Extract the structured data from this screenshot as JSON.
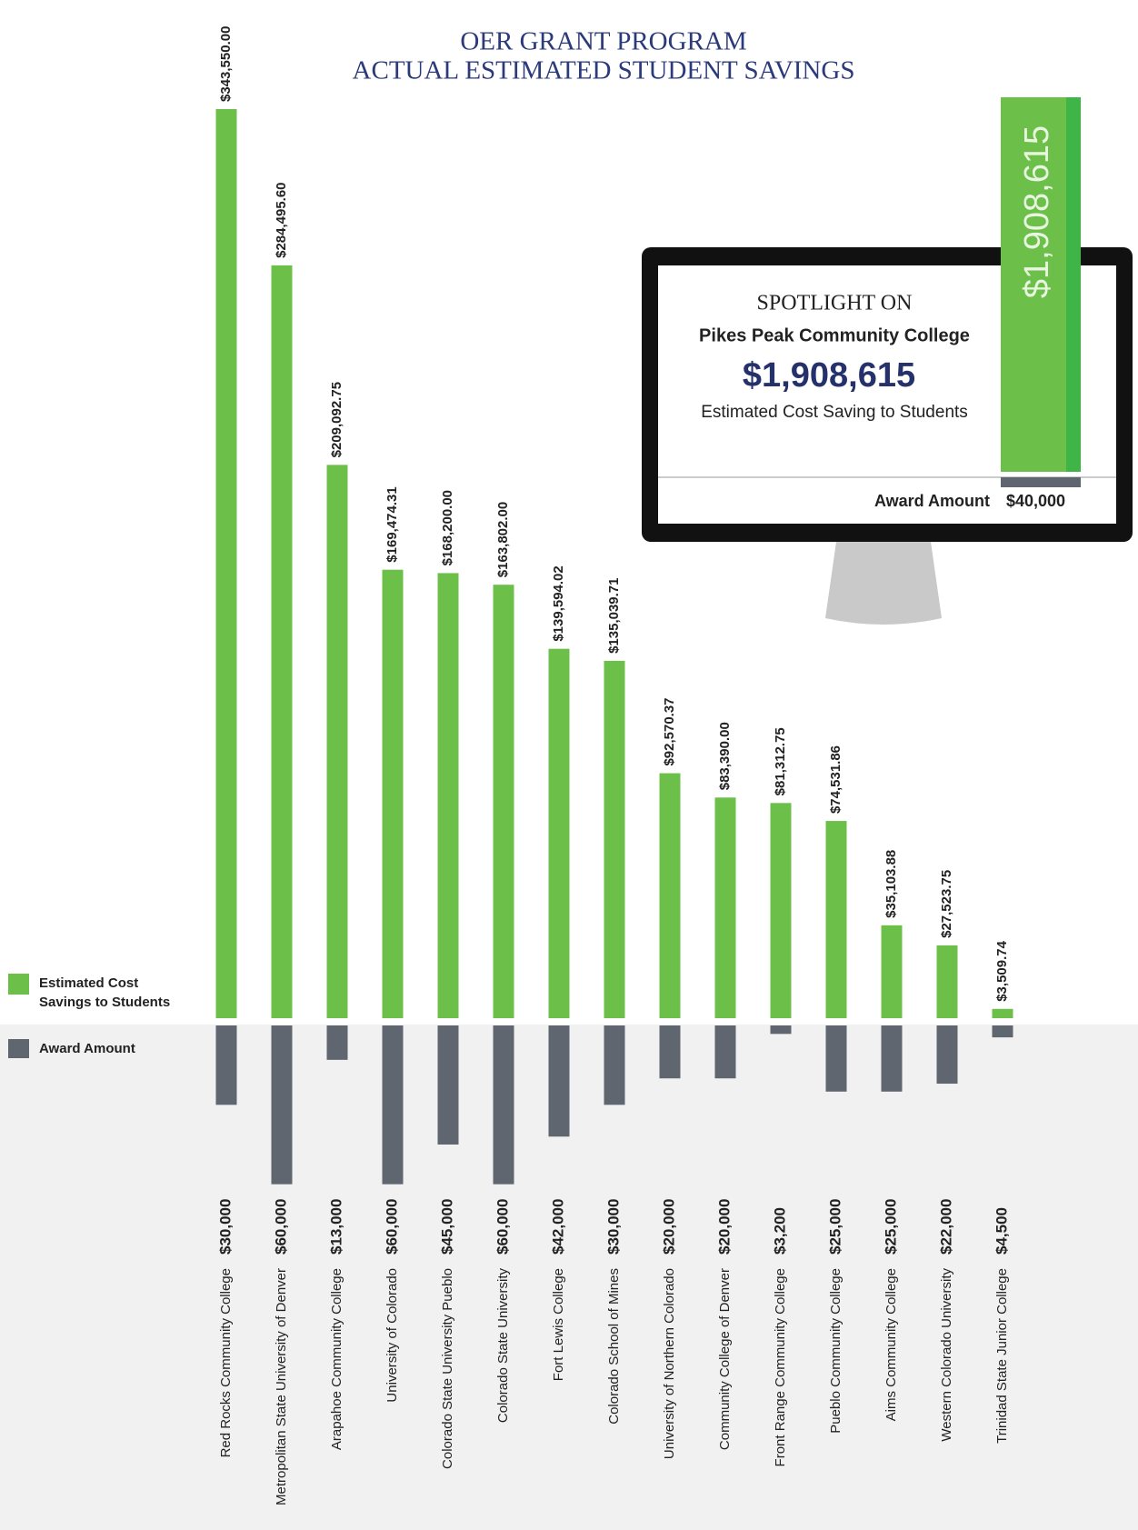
{
  "chart_data": {
    "type": "diverging-bar",
    "title": "OER GRANT PROGRAM",
    "subtitle": "ACTUAL ESTIMATED STUDENT SAVINGS",
    "categories": [
      "Red Rocks Community College",
      "Metropolitan State University of Denver",
      "Arapahoe Community College",
      "University of Colorado",
      "Colorado State University Pueblo",
      "Colorado State University",
      "Fort Lewis College",
      "Colorado School of Mines",
      "University of Northern Colorado",
      "Community College of Denver",
      "Front Range Community College",
      "Pueblo Community College",
      "Aims Community College",
      "Western Colorado University",
      "Trinidad State Junior College"
    ],
    "series": [
      {
        "name": "Estimated Cost Savings to Students",
        "color": "#6cc04a",
        "values": [
          343550,
          284495.6,
          209092.75,
          169474.31,
          168200,
          163802,
          139594.02,
          135039.71,
          92570.37,
          83390,
          81312.75,
          74531.86,
          35103.88,
          27523.75,
          3509.74
        ],
        "value_labels": [
          "$343,550.00",
          "$284,495.60",
          "$209,092.75",
          "$169,474.31",
          "$168,200.00",
          "$163,802.00",
          "$139,594.02",
          "$135,039.71",
          "$92,570.37",
          "$83,390.00",
          "$81,312.75",
          "$74,531.86",
          "$35,103.88",
          "$27,523.75",
          "$3,509.74"
        ]
      },
      {
        "name": "Award Amount",
        "color": "#5f6670",
        "values": [
          30000,
          60000,
          13000,
          60000,
          45000,
          60000,
          42000,
          30000,
          20000,
          20000,
          3200,
          25000,
          25000,
          22000,
          4500
        ],
        "value_labels": [
          "$30,000",
          "$60,000",
          "$13,000",
          "$60,000",
          "$45,000",
          "$60,000",
          "$42,000",
          "$30,000",
          "$20,000",
          "$20,000",
          "$3,200",
          "$25,000",
          "$25,000",
          "$22,000",
          "$4,500"
        ]
      }
    ]
  },
  "spotlight": {
    "heading": "SPOTLIGHT ON",
    "college": "Pikes Peak Community College",
    "savings": "$1,908,615",
    "caption": "Estimated Cost Saving to Students",
    "award_label": "Award Amount",
    "award": "$40,000"
  }
}
